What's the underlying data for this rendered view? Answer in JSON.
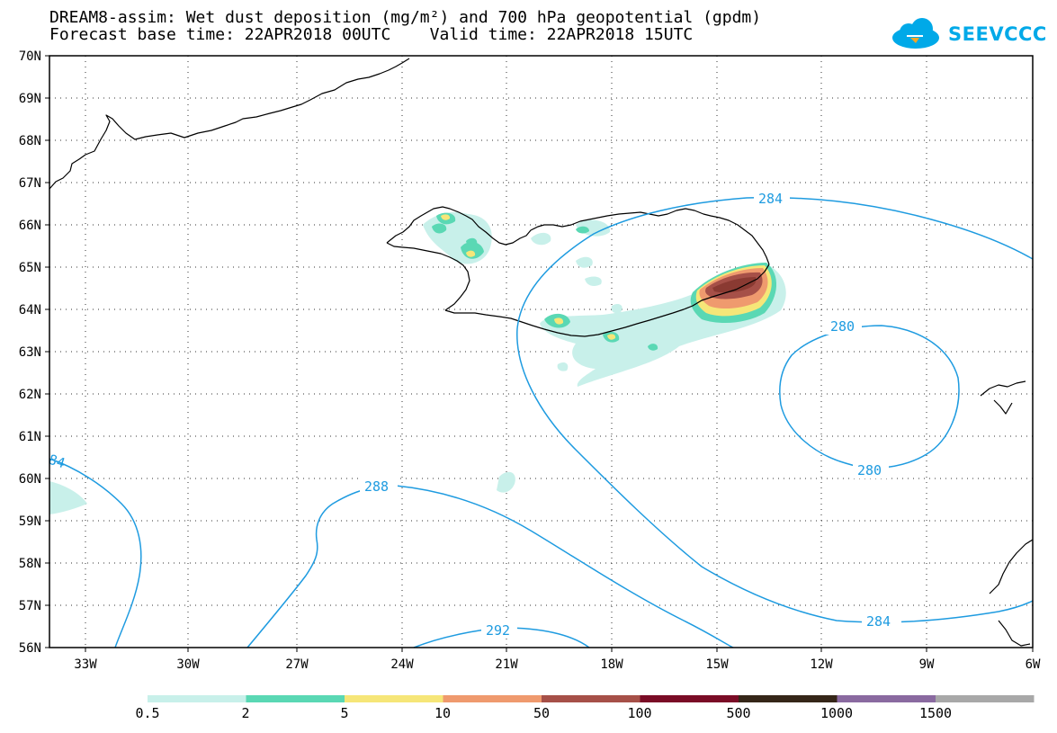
{
  "header": {
    "title_line1": "DREAM8-assim: Wet dust deposition (mg/m²) and 700 hPa geopotential (gpdm)",
    "title_line2": "Forecast base time: 22APR2018 00UTC    Valid time: 22APR2018 15UTC",
    "logo_text": "SEEVCCC"
  },
  "map": {
    "lat_labels": [
      "70N",
      "69N",
      "68N",
      "67N",
      "66N",
      "65N",
      "64N",
      "63N",
      "62N",
      "61N",
      "60N",
      "59N",
      "58N",
      "57N",
      "56N"
    ],
    "lon_labels": [
      "33W",
      "30W",
      "27W",
      "24W",
      "21W",
      "18W",
      "15W",
      "12W",
      "9W",
      "6W"
    ],
    "contour_labels": [
      "284",
      "280",
      "280",
      "288",
      "284",
      "292",
      "84"
    ],
    "colors": {
      "contour": "#1e9be0",
      "coast": "#000000",
      "frame": "#000000"
    }
  },
  "colorbar": {
    "labels": [
      "0.5",
      "2",
      "5",
      "10",
      "50",
      "100",
      "500",
      "1000",
      "1500"
    ],
    "colors": [
      "#c8f0ea",
      "#5ad8b4",
      "#f6e678",
      "#ef9a6e",
      "#a65048",
      "#7a0c26",
      "#352618",
      "#8a6aa0",
      "#a8a8a8"
    ]
  }
}
